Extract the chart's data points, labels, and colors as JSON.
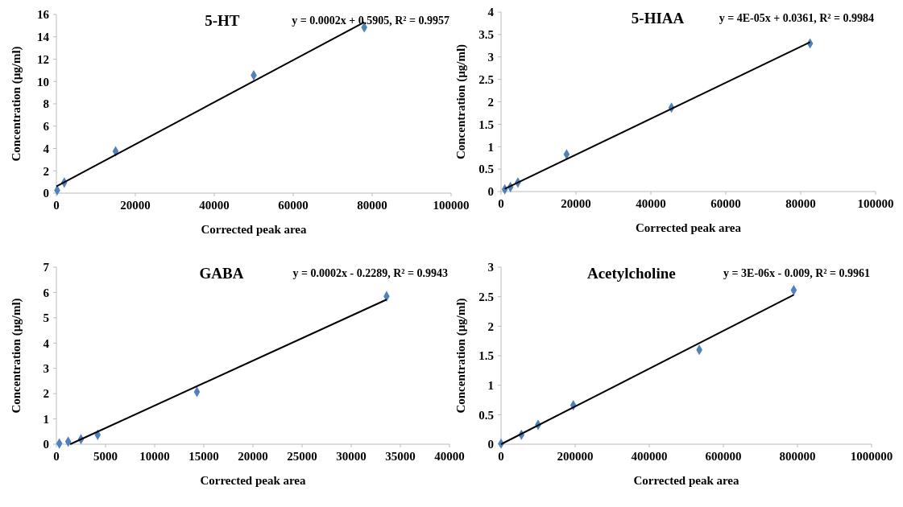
{
  "chart_data": [
    {
      "type": "scatter",
      "title": "5-HT",
      "xlabel": "Corrected peak area",
      "ylabel": "Concentration (µg/ml)",
      "annotations": [
        "y = 0.0002x + 0.5905, R² = 0.9957"
      ],
      "marker": "diamond",
      "grid": false,
      "xlim": [
        0,
        100000
      ],
      "xticks": [
        0,
        20000,
        40000,
        60000,
        80000,
        100000
      ],
      "ylim": [
        0,
        16
      ],
      "yticks": [
        0,
        2,
        4,
        6,
        8,
        10,
        12,
        14,
        16
      ],
      "series": [
        {
          "color": "#4f81bd",
          "x": [
            200,
            2000,
            15000,
            50000,
            78000
          ],
          "values": [
            0.25,
            0.95,
            3.75,
            10.55,
            14.85
          ]
        },
        {
          "type": "line",
          "color": "#000000",
          "marker": "none",
          "x": [
            0,
            78000
          ],
          "values": [
            0.6,
            15.3
          ]
        }
      ]
    },
    {
      "type": "scatter",
      "title": "5-HIAA",
      "xlabel": "Corrected peak area",
      "ylabel": "Concentration (µg/ml)",
      "annotations": [
        "y = 4E-05x + 0.0361, R² = 0.9984"
      ],
      "marker": "diamond",
      "grid": false,
      "xlim": [
        0,
        100000
      ],
      "xticks": [
        0,
        20000,
        40000,
        60000,
        80000,
        100000
      ],
      "ylim": [
        0,
        4
      ],
      "yticks": [
        0,
        0.5,
        1,
        1.5,
        2,
        2.5,
        3,
        3.5,
        4
      ],
      "series": [
        {
          "color": "#4f81bd",
          "x": [
            1000,
            2500,
            4500,
            17500,
            45500,
            82500
          ],
          "values": [
            0.05,
            0.1,
            0.2,
            0.83,
            1.87,
            3.3
          ]
        },
        {
          "type": "line",
          "color": "#000000",
          "marker": "none",
          "x": [
            1000,
            82500
          ],
          "values": [
            0.06,
            3.33
          ]
        }
      ]
    },
    {
      "type": "scatter",
      "title": "GABA",
      "xlabel": "Corrected peak area",
      "ylabel": "Concentration (µg/ml)",
      "annotations": [
        "y = 0.0002x - 0.2289, R² = 0.9943"
      ],
      "marker": "diamond",
      "grid": false,
      "xlim": [
        0,
        40000
      ],
      "xticks": [
        0,
        5000,
        10000,
        15000,
        20000,
        25000,
        30000,
        35000,
        40000
      ],
      "ylim": [
        0,
        7
      ],
      "yticks": [
        0,
        1,
        2,
        3,
        4,
        5,
        6,
        7
      ],
      "series": [
        {
          "color": "#4f81bd",
          "x": [
            300,
            1200,
            2500,
            4200,
            14300,
            33600
          ],
          "values": [
            0.03,
            0.1,
            0.2,
            0.37,
            2.07,
            5.85
          ]
        },
        {
          "type": "line",
          "color": "#000000",
          "marker": "none",
          "x": [
            1400,
            33600
          ],
          "values": [
            0,
            5.72
          ]
        }
      ]
    },
    {
      "type": "scatter",
      "title": "Acetylcholine",
      "xlabel": "Corrected peak area",
      "ylabel": "Concentration (µg/ml)",
      "annotations": [
        "y = 3E-06x - 0.009, R² = 0.9961"
      ],
      "marker": "diamond",
      "grid": false,
      "xlim": [
        0,
        1000000
      ],
      "xticks": [
        0,
        200000,
        400000,
        600000,
        800000,
        1000000
      ],
      "ylim": [
        0,
        3
      ],
      "yticks": [
        0,
        0.5,
        1,
        1.5,
        2,
        2.5,
        3
      ],
      "series": [
        {
          "color": "#4f81bd",
          "x": [
            0,
            55000,
            100000,
            195000,
            535000,
            790000
          ],
          "values": [
            0.01,
            0.16,
            0.33,
            0.66,
            1.6,
            2.61
          ]
        },
        {
          "type": "line",
          "color": "#000000",
          "marker": "none",
          "x": [
            0,
            790000
          ],
          "values": [
            0,
            2.53
          ]
        }
      ]
    }
  ]
}
